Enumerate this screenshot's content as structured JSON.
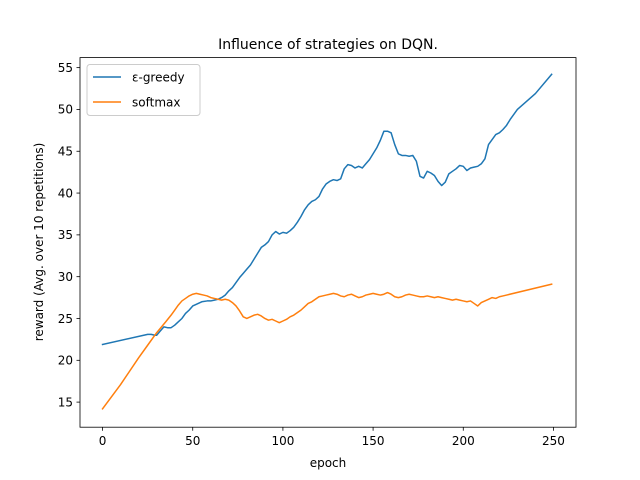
{
  "chart_data": {
    "type": "line",
    "title": "Influence of strategies on DQN.",
    "xlabel": "epoch",
    "ylabel": "reward (Avg. over 10 repetitions)",
    "xlim": [
      -12.5,
      262.5
    ],
    "ylim": [
      12.0,
      56.2
    ],
    "xticks": [
      0,
      50,
      100,
      150,
      200,
      250
    ],
    "yticks": [
      15,
      20,
      25,
      30,
      35,
      40,
      45,
      50,
      55
    ],
    "grid": false,
    "legend_position": "upper-left",
    "series": [
      {
        "name": "ε-greedy",
        "color": "#1f77b4",
        "x": [
          0,
          25,
          27,
          29,
          30,
          32,
          34,
          36,
          38,
          40,
          42,
          44,
          46,
          48,
          50,
          52,
          55,
          58,
          60,
          62,
          64,
          66,
          68,
          70,
          72,
          74,
          76,
          78,
          80,
          82,
          84,
          86,
          88,
          90,
          92,
          94,
          96,
          98,
          100,
          102,
          104,
          106,
          108,
          110,
          112,
          114,
          116,
          118,
          120,
          122,
          124,
          126,
          128,
          130,
          132,
          134,
          136,
          138,
          140,
          142,
          144,
          146,
          148,
          150,
          152,
          154,
          156,
          158,
          160,
          162,
          164,
          166,
          168,
          170,
          172,
          174,
          176,
          178,
          180,
          182,
          184,
          186,
          188,
          190,
          192,
          194,
          196,
          198,
          200,
          202,
          204,
          206,
          208,
          210,
          212,
          214,
          216,
          218,
          220,
          222,
          224,
          226,
          228,
          230,
          240,
          249
        ],
        "y": [
          21.9,
          23.1,
          23.1,
          23.0,
          23.0,
          23.5,
          24.0,
          23.9,
          23.9,
          24.2,
          24.6,
          25.0,
          25.6,
          26.0,
          26.5,
          26.7,
          27.0,
          27.1,
          27.1,
          27.2,
          27.3,
          27.5,
          27.8,
          28.3,
          28.7,
          29.3,
          29.9,
          30.4,
          30.9,
          31.4,
          32.1,
          32.8,
          33.5,
          33.8,
          34.2,
          35.0,
          35.4,
          35.1,
          35.3,
          35.2,
          35.5,
          35.9,
          36.5,
          37.2,
          38.0,
          38.6,
          39.0,
          39.2,
          39.6,
          40.5,
          41.1,
          41.4,
          41.6,
          41.5,
          41.7,
          42.9,
          43.4,
          43.3,
          43.0,
          43.2,
          43.0,
          43.5,
          44.0,
          44.7,
          45.4,
          46.3,
          47.4,
          47.4,
          47.2,
          45.8,
          44.7,
          44.5,
          44.5,
          44.4,
          44.5,
          43.8,
          42.0,
          41.8,
          42.6,
          42.4,
          42.1,
          41.4,
          40.9,
          41.3,
          42.3,
          42.6,
          42.9,
          43.3,
          43.2,
          42.7,
          43.0,
          43.1,
          43.2,
          43.5,
          44.1,
          45.8,
          46.4,
          47.0,
          47.2,
          47.6,
          48.1,
          48.8,
          49.4,
          50.0,
          51.9,
          54.2
        ]
      },
      {
        "name": "softmax",
        "color": "#ff7f0e",
        "x": [
          0,
          10,
          20,
          25,
          30,
          35,
          38,
          40,
          42,
          44,
          46,
          48,
          50,
          52,
          54,
          56,
          58,
          60,
          62,
          64,
          66,
          68,
          70,
          72,
          74,
          76,
          78,
          80,
          82,
          84,
          86,
          88,
          90,
          92,
          94,
          96,
          98,
          100,
          102,
          104,
          106,
          108,
          110,
          112,
          114,
          116,
          118,
          120,
          122,
          124,
          126,
          128,
          130,
          132,
          134,
          136,
          138,
          140,
          142,
          144,
          146,
          148,
          150,
          152,
          154,
          156,
          158,
          160,
          162,
          164,
          166,
          168,
          170,
          172,
          174,
          176,
          178,
          180,
          182,
          184,
          186,
          188,
          190,
          192,
          194,
          196,
          198,
          200,
          202,
          204,
          206,
          208,
          210,
          212,
          214,
          216,
          218,
          220,
          222,
          249
        ],
        "y": [
          14.2,
          17.1,
          20.3,
          21.8,
          23.3,
          24.6,
          25.4,
          26.0,
          26.6,
          27.1,
          27.4,
          27.7,
          27.9,
          28.0,
          27.9,
          27.8,
          27.7,
          27.5,
          27.4,
          27.3,
          27.2,
          27.3,
          27.2,
          26.9,
          26.5,
          25.9,
          25.2,
          25.0,
          25.2,
          25.4,
          25.5,
          25.3,
          25.0,
          24.8,
          24.9,
          24.7,
          24.5,
          24.7,
          24.9,
          25.2,
          25.4,
          25.7,
          26.0,
          26.4,
          26.8,
          27.0,
          27.3,
          27.6,
          27.7,
          27.8,
          27.9,
          28.0,
          27.9,
          27.7,
          27.6,
          27.8,
          27.9,
          27.7,
          27.5,
          27.6,
          27.8,
          27.9,
          28.0,
          27.9,
          27.8,
          27.9,
          28.1,
          27.9,
          27.6,
          27.5,
          27.6,
          27.8,
          27.9,
          27.8,
          27.7,
          27.6,
          27.6,
          27.7,
          27.6,
          27.5,
          27.6,
          27.5,
          27.4,
          27.3,
          27.2,
          27.3,
          27.2,
          27.1,
          27.0,
          27.1,
          26.8,
          26.5,
          26.9,
          27.1,
          27.3,
          27.5,
          27.4,
          27.6,
          27.7,
          29.1
        ]
      }
    ]
  }
}
